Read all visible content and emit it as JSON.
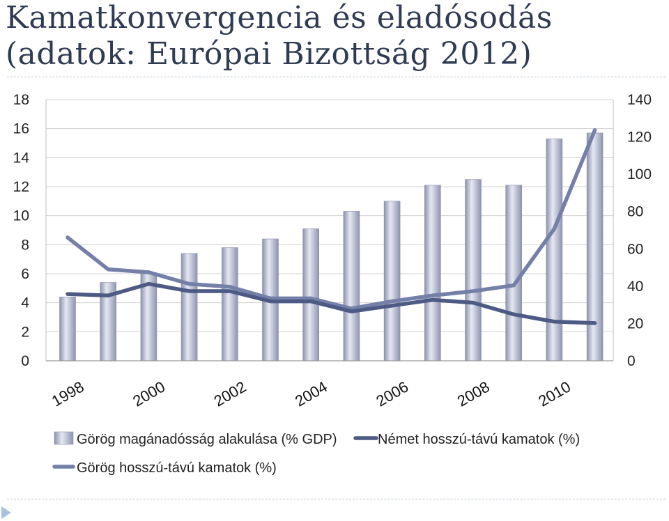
{
  "title": {
    "line1": "Kamatkonvergencia és eladósodás",
    "line2": "(adatok: Európai Bizottság 2012)"
  },
  "colors": {
    "title": "#2f3b52",
    "bar_light": "#e2e5f0",
    "bar_dark": "#9399b5",
    "german_line": "#4d5a83",
    "greek_line": "#7480a8",
    "grid": "#d0d0d0"
  },
  "chart_data": {
    "type": "bar",
    "x": [
      1998,
      1999,
      2000,
      2001,
      2002,
      2003,
      2004,
      2005,
      2006,
      2007,
      2008,
      2009,
      2010,
      2011
    ],
    "x_tick_labels": [
      "1998",
      "2000",
      "2002",
      "2004",
      "2006",
      "2008",
      "2010"
    ],
    "x_tick_years": [
      1998,
      2000,
      2002,
      2004,
      2006,
      2008,
      2010
    ],
    "y_left_ticks": [
      "0",
      "2",
      "4",
      "6",
      "8",
      "10",
      "12",
      "14",
      "16",
      "18"
    ],
    "y_right_ticks": [
      "0",
      "20",
      "40",
      "60",
      "80",
      "100",
      "120",
      "140"
    ],
    "ylim_left": [
      0,
      18
    ],
    "ylim_right": [
      0,
      140
    ],
    "grid": true,
    "legend_position": "bottom",
    "series": [
      {
        "name": "Görög magánadósság alakulása (% GDP)",
        "type": "bar",
        "axis": "left",
        "values": [
          4.4,
          5.4,
          6.0,
          7.4,
          7.8,
          8.4,
          9.1,
          10.3,
          11.0,
          12.1,
          12.5,
          12.1,
          15.3,
          15.7
        ]
      },
      {
        "name": "Német hosszú-távú kamatok (%)",
        "type": "line",
        "axis": "left",
        "values": [
          4.6,
          4.5,
          5.3,
          4.8,
          4.8,
          4.1,
          4.1,
          3.4,
          3.8,
          4.2,
          4.0,
          3.2,
          2.7,
          2.6
        ]
      },
      {
        "name": "Görög hosszú-távú kamatok (%)",
        "type": "line",
        "axis": "left",
        "values": [
          8.5,
          6.3,
          6.1,
          5.3,
          5.1,
          4.3,
          4.3,
          3.6,
          4.1,
          4.5,
          4.8,
          5.2,
          9.1,
          15.9
        ]
      }
    ]
  }
}
